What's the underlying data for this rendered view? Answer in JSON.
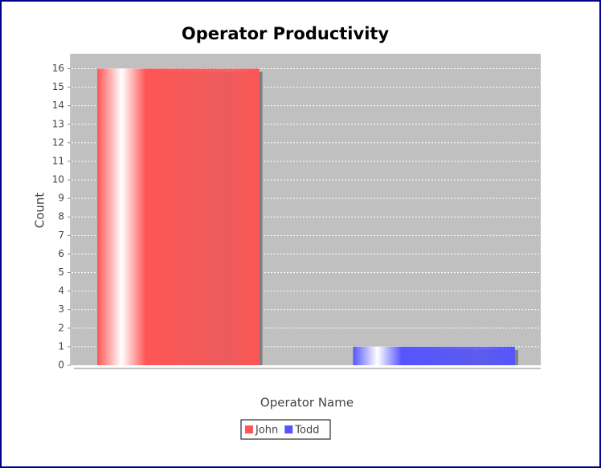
{
  "chart_data": {
    "type": "bar",
    "title": "Operator Productivity",
    "x_label": "Operator Name",
    "y_label": "Count",
    "categories": [
      null
    ],
    "series": [
      {
        "name": "John",
        "color": "#ff5555",
        "values": [
          16
        ]
      },
      {
        "name": "Todd",
        "color": "#5555ff",
        "values": [
          1
        ]
      }
    ],
    "ylim": [
      0,
      16.8
    ],
    "yticks": [
      0,
      1,
      2,
      3,
      4,
      5,
      6,
      7,
      8,
      9,
      10,
      11,
      12,
      13,
      14,
      15,
      16
    ],
    "grid": true
  }
}
